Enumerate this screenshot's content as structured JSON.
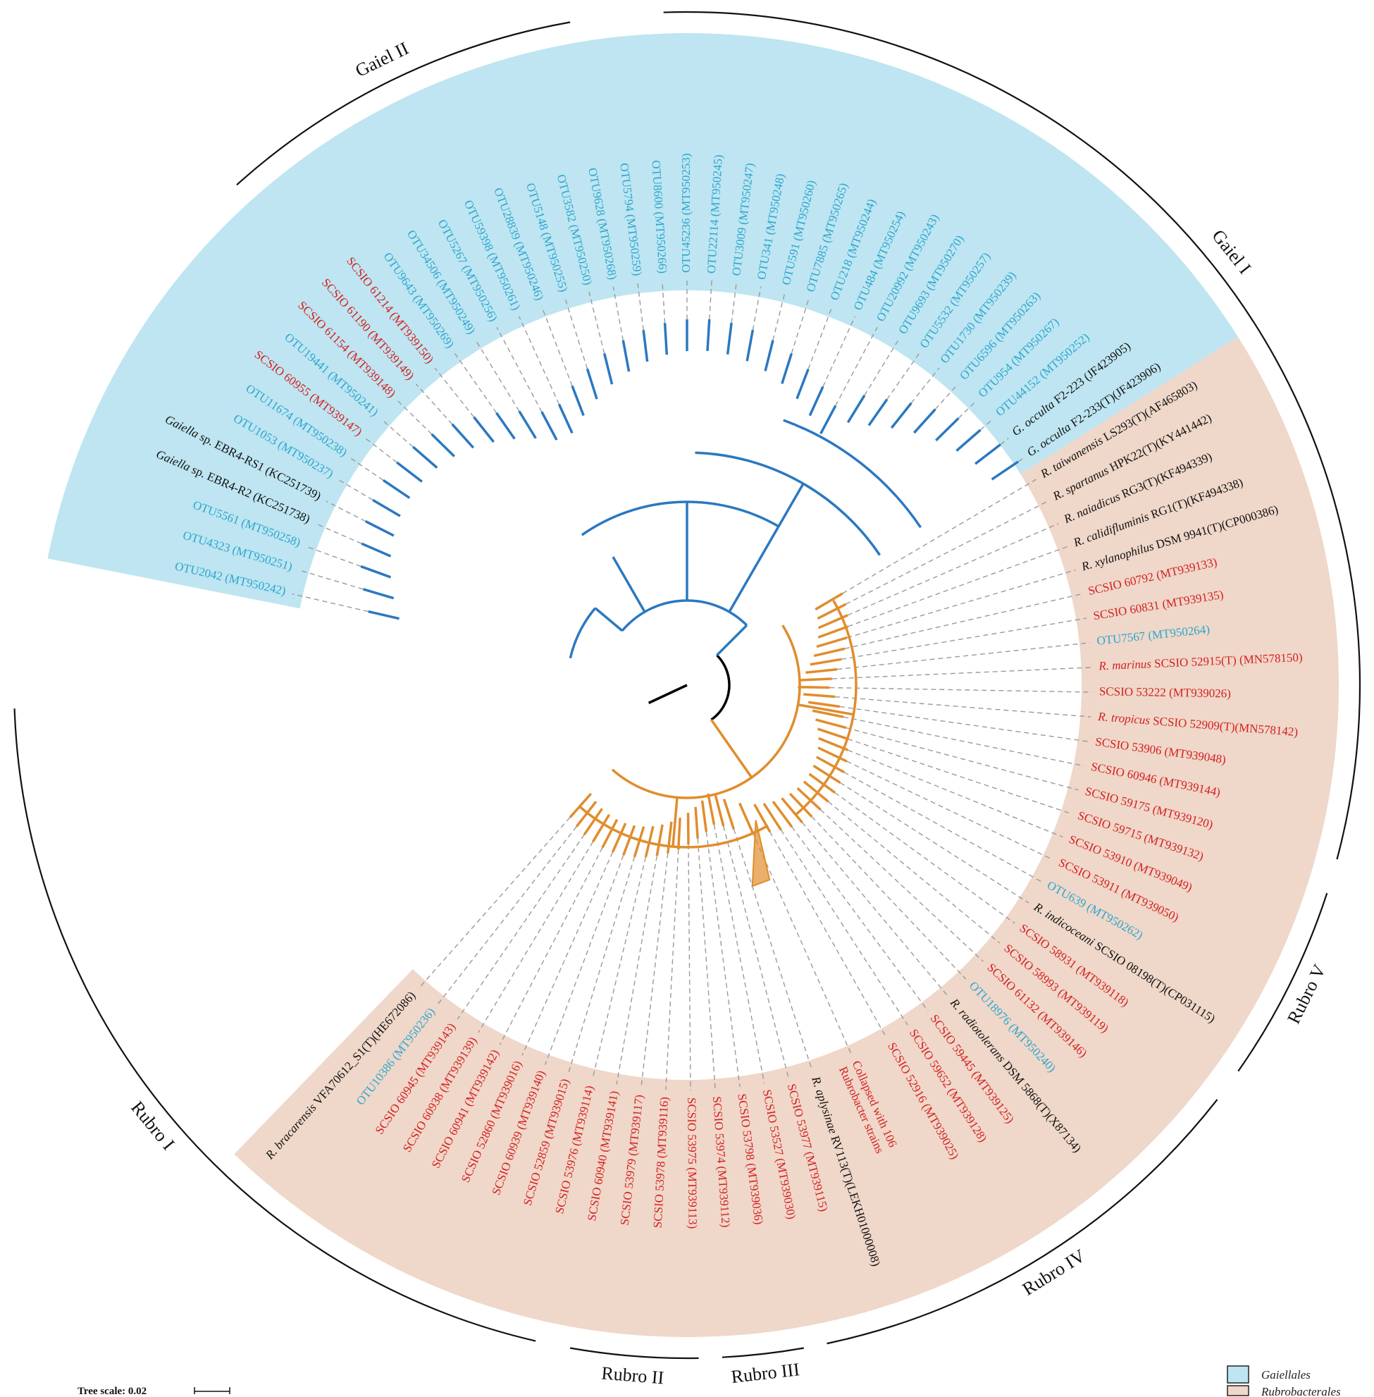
{
  "colors": {
    "gaiellales_band": "#bee5f1",
    "rubrobacterales_band": "#efd7c9",
    "gaiellales_branch": "#2b78c0",
    "rubrobacterales_branch": "#e08d2c",
    "root_branch": "#000000",
    "red_label": "#d42020",
    "cyan_label": "#2aa6cf",
    "black_label": "#111111",
    "leader_line": "#9a9a9a"
  },
  "clades": [
    {
      "name": "Gaiel II",
      "arc_deg": [
        -132,
        -100
      ]
    },
    {
      "name": "Gaiel I",
      "arc_deg": [
        -92,
        15
      ]
    },
    {
      "name": "Rubro V",
      "arc_deg": [
        18,
        35
      ]
    },
    {
      "name": "Rubro IV",
      "arc_deg": [
        38,
        78
      ]
    },
    {
      "name": "Rubro III",
      "arc_deg": [
        80,
        87
      ]
    },
    {
      "name": "Rubro II",
      "arc_deg": [
        89,
        100
      ]
    },
    {
      "name": "Rubro I",
      "arc_deg": [
        103,
        178
      ]
    }
  ],
  "leaves": [
    {
      "angle": 167.0,
      "color": "cyan",
      "parts": [
        {
          "t": "OTU2042 (MT950242)"
        }
      ]
    },
    {
      "angle": 163.5,
      "color": "cyan",
      "parts": [
        {
          "t": "OTU4323 (MT950251)"
        }
      ]
    },
    {
      "angle": 160.0,
      "color": "cyan",
      "parts": [
        {
          "t": "OTU5561 (MT950258)"
        }
      ]
    },
    {
      "angle": 156.5,
      "color": "black",
      "parts": [
        {
          "t": "Gaiella",
          "i": true
        },
        {
          "t": " sp. EBR4-R2 (KC251738)"
        }
      ]
    },
    {
      "angle": 153.0,
      "color": "black",
      "parts": [
        {
          "t": "Gaiella",
          "i": true
        },
        {
          "t": " sp. EBR4-RS1 (KC251739)"
        }
      ]
    },
    {
      "angle": 149.5,
      "color": "cyan",
      "parts": [
        {
          "t": "OTU1053 (MT950237)"
        }
      ]
    },
    {
      "angle": 146.0,
      "color": "cyan",
      "parts": [
        {
          "t": "OTU11674 (MT950238)"
        }
      ]
    },
    {
      "angle": 142.5,
      "color": "red",
      "parts": [
        {
          "t": "SCSIO 60955 (MT939147)"
        }
      ]
    },
    {
      "angle": 139.0,
      "color": "cyan",
      "parts": [
        {
          "t": "OTU19441 (MT950241)"
        }
      ]
    },
    {
      "angle": 135.5,
      "color": "red",
      "parts": [
        {
          "t": "SCSIO 61154 (MT939148)"
        }
      ]
    },
    {
      "angle": 132.0,
      "color": "red",
      "parts": [
        {
          "t": "SCSIO 61190 (MT939149)"
        }
      ]
    },
    {
      "angle": 128.5,
      "color": "red",
      "parts": [
        {
          "t": "SCSIO 61214 (MT939150)"
        }
      ]
    },
    {
      "angle": 125.0,
      "color": "cyan",
      "parts": [
        {
          "t": "OTU9643 (MT950269)"
        }
      ]
    },
    {
      "angle": 121.5,
      "color": "cyan",
      "parts": [
        {
          "t": "OTU34506 (MT950249)"
        }
      ]
    },
    {
      "angle": 118.0,
      "color": "cyan",
      "parts": [
        {
          "t": "OTU5267 (MT950256)"
        }
      ]
    },
    {
      "angle": 114.5,
      "color": "cyan",
      "parts": [
        {
          "t": "OTU59398 (MT950261)"
        }
      ]
    },
    {
      "angle": 111.0,
      "color": "cyan",
      "parts": [
        {
          "t": "OTU28839 (MT950246)"
        }
      ]
    },
    {
      "angle": 107.5,
      "color": "cyan",
      "parts": [
        {
          "t": "OTU5148 (MT950255)"
        }
      ]
    },
    {
      "angle": 104.0,
      "color": "cyan",
      "parts": [
        {
          "t": "OTU3582 (MT950250)"
        }
      ]
    },
    {
      "angle": 100.5,
      "color": "cyan",
      "parts": [
        {
          "t": "OTU9628 (MT950268)"
        }
      ]
    },
    {
      "angle": 97.0,
      "color": "cyan",
      "parts": [
        {
          "t": "OTU5794 (MT950259)"
        }
      ]
    },
    {
      "angle": 93.5,
      "color": "cyan",
      "parts": [
        {
          "t": "OTU8600 (MT950266)"
        }
      ]
    },
    {
      "angle": 90.0,
      "color": "cyan",
      "parts": [
        {
          "t": "OTU45236 (MT950253)"
        }
      ]
    },
    {
      "angle": 86.5,
      "color": "cyan",
      "parts": [
        {
          "t": "OTU22114 (MT950245)"
        }
      ]
    },
    {
      "angle": 83.0,
      "color": "cyan",
      "parts": [
        {
          "t": "OTU3009 (MT950247)"
        }
      ]
    },
    {
      "angle": 79.5,
      "color": "cyan",
      "parts": [
        {
          "t": "OTU341 (MT950248)"
        }
      ]
    },
    {
      "angle": 76.0,
      "color": "cyan",
      "parts": [
        {
          "t": "OTU591 (MT950260)"
        }
      ]
    },
    {
      "angle": 72.5,
      "color": "cyan",
      "parts": [
        {
          "t": "OTU7885 (MT950265)"
        }
      ]
    },
    {
      "angle": 69.0,
      "color": "cyan",
      "parts": [
        {
          "t": "OTU218 (MT950244)"
        }
      ]
    },
    {
      "angle": 65.5,
      "color": "cyan",
      "parts": [
        {
          "t": "OTU484 (MT950254)"
        }
      ]
    },
    {
      "angle": 62.0,
      "color": "cyan",
      "parts": [
        {
          "t": "OTU20992 (MT950243)"
        }
      ]
    },
    {
      "angle": 58.5,
      "color": "cyan",
      "parts": [
        {
          "t": "OTU9693 (MT950270)"
        }
      ]
    },
    {
      "angle": 55.0,
      "color": "cyan",
      "parts": [
        {
          "t": "OTU5532 (MT950257)"
        }
      ]
    },
    {
      "angle": 51.5,
      "color": "cyan",
      "parts": [
        {
          "t": "OTU1730 (MT950239)"
        }
      ]
    },
    {
      "angle": 48.0,
      "color": "cyan",
      "parts": [
        {
          "t": "OTU6596 (MT950263)"
        }
      ]
    },
    {
      "angle": 44.5,
      "color": "cyan",
      "parts": [
        {
          "t": "OTU954 (MT950267)"
        }
      ]
    },
    {
      "angle": 41.0,
      "color": "cyan",
      "parts": [
        {
          "t": "OTU44152 (MT950252)"
        }
      ]
    },
    {
      "angle": 37.5,
      "color": "black",
      "parts": [
        {
          "t": "G. occulta",
          "i": true
        },
        {
          "t": " F2-223 (JF423905)"
        }
      ]
    },
    {
      "angle": 34.0,
      "color": "black",
      "parts": [
        {
          "t": "G. occulta",
          "i": true
        },
        {
          "t": " F2-233(T)(JF423906)"
        }
      ]
    },
    {
      "angle": 30.5,
      "color": "black",
      "parts": [
        {
          "t": "R. taiwanensis",
          "i": true
        },
        {
          "t": " LS293(T)(AF465803)"
        }
      ]
    },
    {
      "angle": 27.0,
      "color": "black",
      "parts": [
        {
          "t": "R. spartanus",
          "i": true
        },
        {
          "t": " HPK22(T)(KY441442)"
        }
      ]
    },
    {
      "angle": 23.5,
      "color": "black",
      "parts": [
        {
          "t": "R. naiadicus",
          "i": true
        },
        {
          "t": " RG3(T)(KF494339)"
        }
      ]
    },
    {
      "angle": 20.0,
      "color": "black",
      "parts": [
        {
          "t": "R. calidifluminis",
          "i": true
        },
        {
          "t": " RG1(T)(KF494338)"
        }
      ]
    },
    {
      "angle": 16.5,
      "color": "black",
      "parts": [
        {
          "t": "R. xylanophilus",
          "i": true
        },
        {
          "t": " DSM 9941(T)(CP000386)"
        }
      ]
    },
    {
      "angle": 13.0,
      "color": "red",
      "parts": [
        {
          "t": "SCSIO 60792 (MT939133)"
        }
      ]
    },
    {
      "angle": 9.5,
      "color": "red",
      "parts": [
        {
          "t": "SCSIO 60831 (MT939135)"
        }
      ]
    },
    {
      "angle": 6.0,
      "color": "cyan",
      "parts": [
        {
          "t": "OTU7567 (MT950264)"
        }
      ]
    },
    {
      "angle": 2.5,
      "color": "red",
      "parts": [
        {
          "t": "R. marinus",
          "i": true
        },
        {
          "t": " SCSIO 52915(T) (MN578150)"
        }
      ]
    },
    {
      "angle": -1.0,
      "color": "red",
      "parts": [
        {
          "t": "SCSIO 53222 (MT939026)"
        }
      ]
    },
    {
      "angle": -4.5,
      "color": "red",
      "parts": [
        {
          "t": "R. tropicus",
          "i": true
        },
        {
          "t": " SCSIO 52909(T)(MN578142)"
        }
      ]
    },
    {
      "angle": -8.0,
      "color": "red",
      "parts": [
        {
          "t": "SCSIO 53906 (MT939048)"
        }
      ]
    },
    {
      "angle": -11.5,
      "color": "red",
      "parts": [
        {
          "t": "SCSIO 60946 (MT939144)"
        }
      ]
    },
    {
      "angle": -15.0,
      "color": "red",
      "parts": [
        {
          "t": "SCSIO 59175 (MT939120)"
        }
      ]
    },
    {
      "angle": -18.5,
      "color": "red",
      "parts": [
        {
          "t": "SCSIO 59715 (MT939132)"
        }
      ]
    },
    {
      "angle": -22.0,
      "color": "red",
      "parts": [
        {
          "t": "SCSIO 53910 (MT939049)"
        }
      ]
    },
    {
      "angle": -25.5,
      "color": "red",
      "parts": [
        {
          "t": "SCSIO 53911 (MT939050)"
        }
      ]
    },
    {
      "angle": -29.0,
      "color": "cyan",
      "parts": [
        {
          "t": "OTU639 (MT950262)"
        }
      ]
    },
    {
      "angle": -32.5,
      "color": "black",
      "parts": [
        {
          "t": "R. indicoceani",
          "i": true
        },
        {
          "t": " SCSIO 08198(T)(CP031115)"
        }
      ]
    },
    {
      "angle": -36.0,
      "color": "red",
      "parts": [
        {
          "t": "SCSIO 58931 (MT939118)"
        }
      ]
    },
    {
      "angle": -39.5,
      "color": "red",
      "parts": [
        {
          "t": "SCSIO 58993 (MT939119)"
        }
      ]
    },
    {
      "angle": -43.0,
      "color": "red",
      "parts": [
        {
          "t": "SCSIO 61132 (MT939146)"
        }
      ]
    },
    {
      "angle": -46.5,
      "color": "cyan",
      "parts": [
        {
          "t": "OTU18976 (MT950240)"
        }
      ]
    },
    {
      "angle": -50.0,
      "color": "black",
      "parts": [
        {
          "t": "R. radiotolerans",
          "i": true
        },
        {
          "t": " DSM 5868(T)(X87134)"
        }
      ]
    },
    {
      "angle": -53.5,
      "color": "red",
      "parts": [
        {
          "t": "SCSIO 59445 (MT939125)"
        }
      ]
    },
    {
      "angle": -57.0,
      "color": "red",
      "parts": [
        {
          "t": "SCSIO 59652 (MT939128)"
        }
      ]
    },
    {
      "angle": -60.5,
      "color": "red",
      "parts": [
        {
          "t": "SCSIO 52916 (MT939025)"
        }
      ]
    },
    {
      "angle": -66.0,
      "color": "red",
      "parts": [
        {
          "t": "Collapsed with 106"
        },
        {
          "t": "Rubrobacter strains",
          "br": true
        }
      ]
    },
    {
      "angle": -72.0,
      "color": "black",
      "parts": [
        {
          "t": "R. aplysinae",
          "i": true
        },
        {
          "t": " RV113(T)(LEKH01000008)"
        }
      ]
    },
    {
      "angle": -75.5,
      "color": "red",
      "parts": [
        {
          "t": "SCSIO 53977 (MT939115)"
        }
      ]
    },
    {
      "angle": -79.0,
      "color": "red",
      "parts": [
        {
          "t": "SCSIO 53527 (MT939030)"
        }
      ]
    },
    {
      "angle": -82.5,
      "color": "red",
      "parts": [
        {
          "t": "SCSIO 53798 (MT939036)"
        }
      ]
    },
    {
      "angle": -86.0,
      "color": "red",
      "parts": [
        {
          "t": "SCSIO 53974 (MT939112)"
        }
      ]
    },
    {
      "angle": -89.5,
      "color": "red",
      "parts": [
        {
          "t": "SCSIO 53975 (MT939113)"
        }
      ]
    },
    {
      "angle": -93.0,
      "color": "red",
      "parts": [
        {
          "t": "SCSIO 53978 (MT939116)"
        }
      ]
    },
    {
      "angle": -96.5,
      "color": "red",
      "parts": [
        {
          "t": "SCSIO 53979 (MT939117)"
        }
      ]
    },
    {
      "angle": -100.0,
      "color": "red",
      "parts": [
        {
          "t": "SCSIO 60940 (MT939141)"
        }
      ]
    },
    {
      "angle": -103.5,
      "color": "red",
      "parts": [
        {
          "t": "SCSIO 53976 (MT939114)"
        }
      ]
    },
    {
      "angle": -107.0,
      "color": "red",
      "parts": [
        {
          "t": "SCSIO 52859 (MT939015)"
        }
      ]
    },
    {
      "angle": -110.5,
      "color": "red",
      "parts": [
        {
          "t": "SCSIO 60939 (MT939140)"
        }
      ]
    },
    {
      "angle": -114.0,
      "color": "red",
      "parts": [
        {
          "t": "SCSIO 52860 (MT939016)"
        }
      ]
    },
    {
      "angle": -117.5,
      "color": "red",
      "parts": [
        {
          "t": "SCSIO 60941 (MT939142)"
        }
      ]
    },
    {
      "angle": -121.0,
      "color": "red",
      "parts": [
        {
          "t": "SCSIO 60938 (MT939139)"
        }
      ]
    },
    {
      "angle": -124.5,
      "color": "red",
      "parts": [
        {
          "t": "SCSIO 60945 (MT939143)"
        }
      ]
    },
    {
      "angle": -128.0,
      "color": "cyan",
      "parts": [
        {
          "t": "OTU10386 (MT950236)"
        }
      ]
    },
    {
      "angle": -131.5,
      "color": "black",
      "parts": [
        {
          "t": "R. bracarensis",
          "i": true
        },
        {
          "t": " VFA70612_S1(T)(HE672086)"
        }
      ]
    }
  ],
  "legend": [
    {
      "label": "Gaiellales",
      "color": "#bee5f1"
    },
    {
      "label": "Rubrobacterales",
      "color": "#efd7c9"
    }
  ],
  "scale": {
    "label": "Tree scale: 0.02"
  }
}
